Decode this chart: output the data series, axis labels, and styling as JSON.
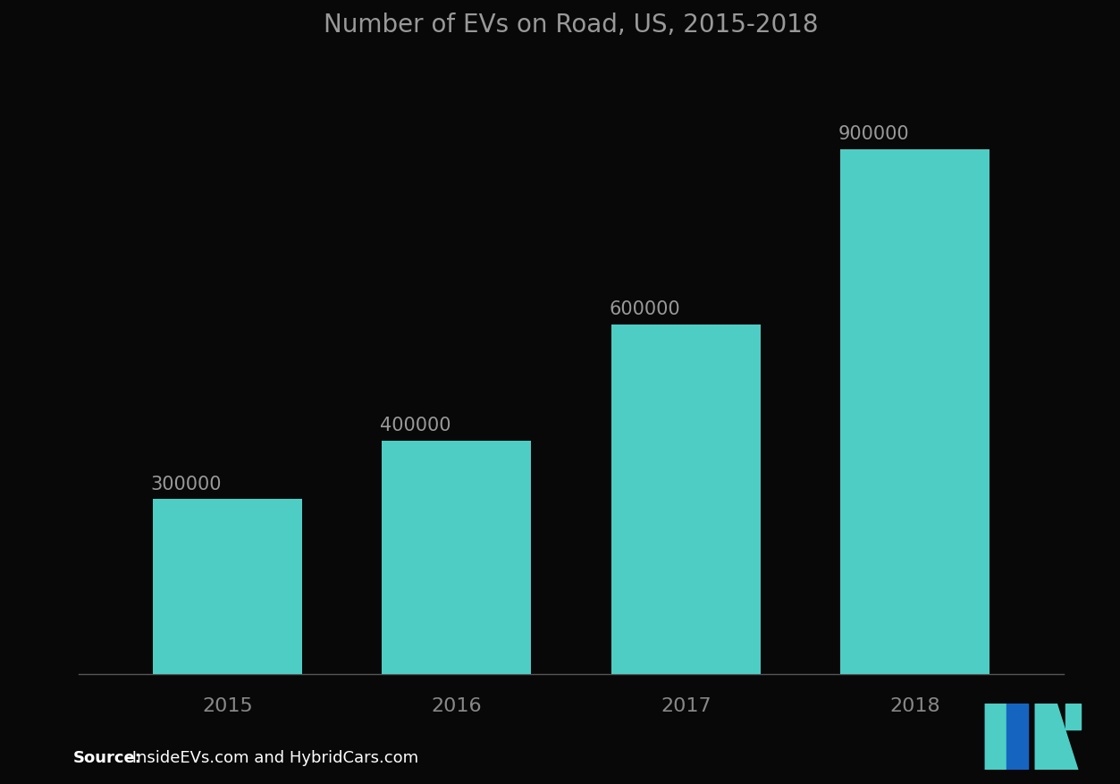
{
  "title": "Number of EVs on Road, US, 2015-2018",
  "categories": [
    "2015",
    "2016",
    "2017",
    "2018"
  ],
  "values": [
    300000,
    400000,
    600000,
    900000
  ],
  "bar_color": "#4ECDC4",
  "background_color": "#080808",
  "title_color": "#999999",
  "label_color": "#999999",
  "tick_color": "#888888",
  "source_bold": "Source:",
  "source_rest": " InsideEVs.com and HybridCars.com",
  "ylim": [
    0,
    1050000
  ],
  "bar_width": 0.65,
  "title_fontsize": 20,
  "label_fontsize": 15,
  "tick_fontsize": 16,
  "source_fontsize": 13,
  "logo_blue": "#1565C0",
  "logo_teal": "#4ECDC4"
}
